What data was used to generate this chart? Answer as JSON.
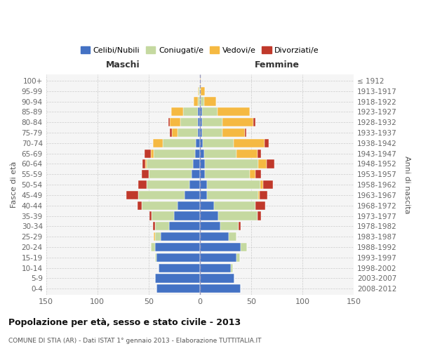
{
  "age_groups": [
    "0-4",
    "5-9",
    "10-14",
    "15-19",
    "20-24",
    "25-29",
    "30-34",
    "35-39",
    "40-44",
    "45-49",
    "50-54",
    "55-59",
    "60-64",
    "65-69",
    "70-74",
    "75-79",
    "80-84",
    "85-89",
    "90-94",
    "95-99",
    "100+"
  ],
  "birth_years": [
    "2008-2012",
    "2003-2007",
    "1998-2002",
    "1993-1997",
    "1988-1992",
    "1983-1987",
    "1978-1982",
    "1973-1977",
    "1968-1972",
    "1963-1967",
    "1958-1962",
    "1953-1957",
    "1948-1952",
    "1943-1947",
    "1938-1942",
    "1933-1937",
    "1928-1932",
    "1923-1927",
    "1918-1922",
    "1913-1917",
    "≤ 1912"
  ],
  "colors": {
    "celibi": "#4472c4",
    "coniugati": "#c5d9a0",
    "vedovi": "#f5b942",
    "divorziati": "#c0392b"
  },
  "title": "Popolazione per età, sesso e stato civile - 2013",
  "subtitle": "COMUNE DI STIA (AR) - Dati ISTAT 1° gennaio 2013 - Elaborazione TUTTITALIA.IT",
  "xlabel_left": "Maschi",
  "xlabel_right": "Femmine",
  "ylabel_left": "Fasce di età",
  "ylabel_right": "Anni di nascita",
  "legend_labels": [
    "Celibi/Nubili",
    "Coniugati/e",
    "Vedovi/e",
    "Divorziati/e"
  ],
  "xlim": 150,
  "m_cel": [
    42,
    44,
    40,
    42,
    44,
    38,
    30,
    25,
    22,
    15,
    10,
    8,
    7,
    5,
    4,
    2,
    2,
    2,
    0,
    0,
    0
  ],
  "m_con": [
    0,
    0,
    0,
    2,
    4,
    6,
    14,
    22,
    35,
    45,
    42,
    42,
    45,
    40,
    32,
    20,
    17,
    14,
    2,
    1,
    0
  ],
  "m_ved": [
    0,
    0,
    0,
    0,
    0,
    1,
    0,
    0,
    0,
    0,
    0,
    0,
    1,
    3,
    10,
    5,
    10,
    12,
    4,
    1,
    0
  ],
  "m_div": [
    0,
    0,
    0,
    0,
    0,
    0,
    2,
    2,
    4,
    12,
    8,
    7,
    3,
    6,
    0,
    2,
    2,
    0,
    0,
    0,
    0
  ],
  "f_nub": [
    40,
    34,
    30,
    36,
    40,
    28,
    20,
    18,
    14,
    7,
    7,
    5,
    5,
    4,
    3,
    2,
    2,
    2,
    1,
    0,
    0
  ],
  "f_con": [
    0,
    0,
    2,
    3,
    6,
    8,
    18,
    38,
    40,
    50,
    52,
    44,
    52,
    32,
    30,
    20,
    20,
    15,
    3,
    1,
    0
  ],
  "f_ved": [
    0,
    0,
    0,
    0,
    0,
    0,
    0,
    0,
    0,
    1,
    3,
    5,
    8,
    20,
    30,
    22,
    30,
    32,
    12,
    4,
    1
  ],
  "f_div": [
    0,
    0,
    0,
    0,
    0,
    0,
    2,
    4,
    10,
    8,
    9,
    6,
    8,
    4,
    4,
    1,
    2,
    0,
    0,
    0,
    0
  ]
}
